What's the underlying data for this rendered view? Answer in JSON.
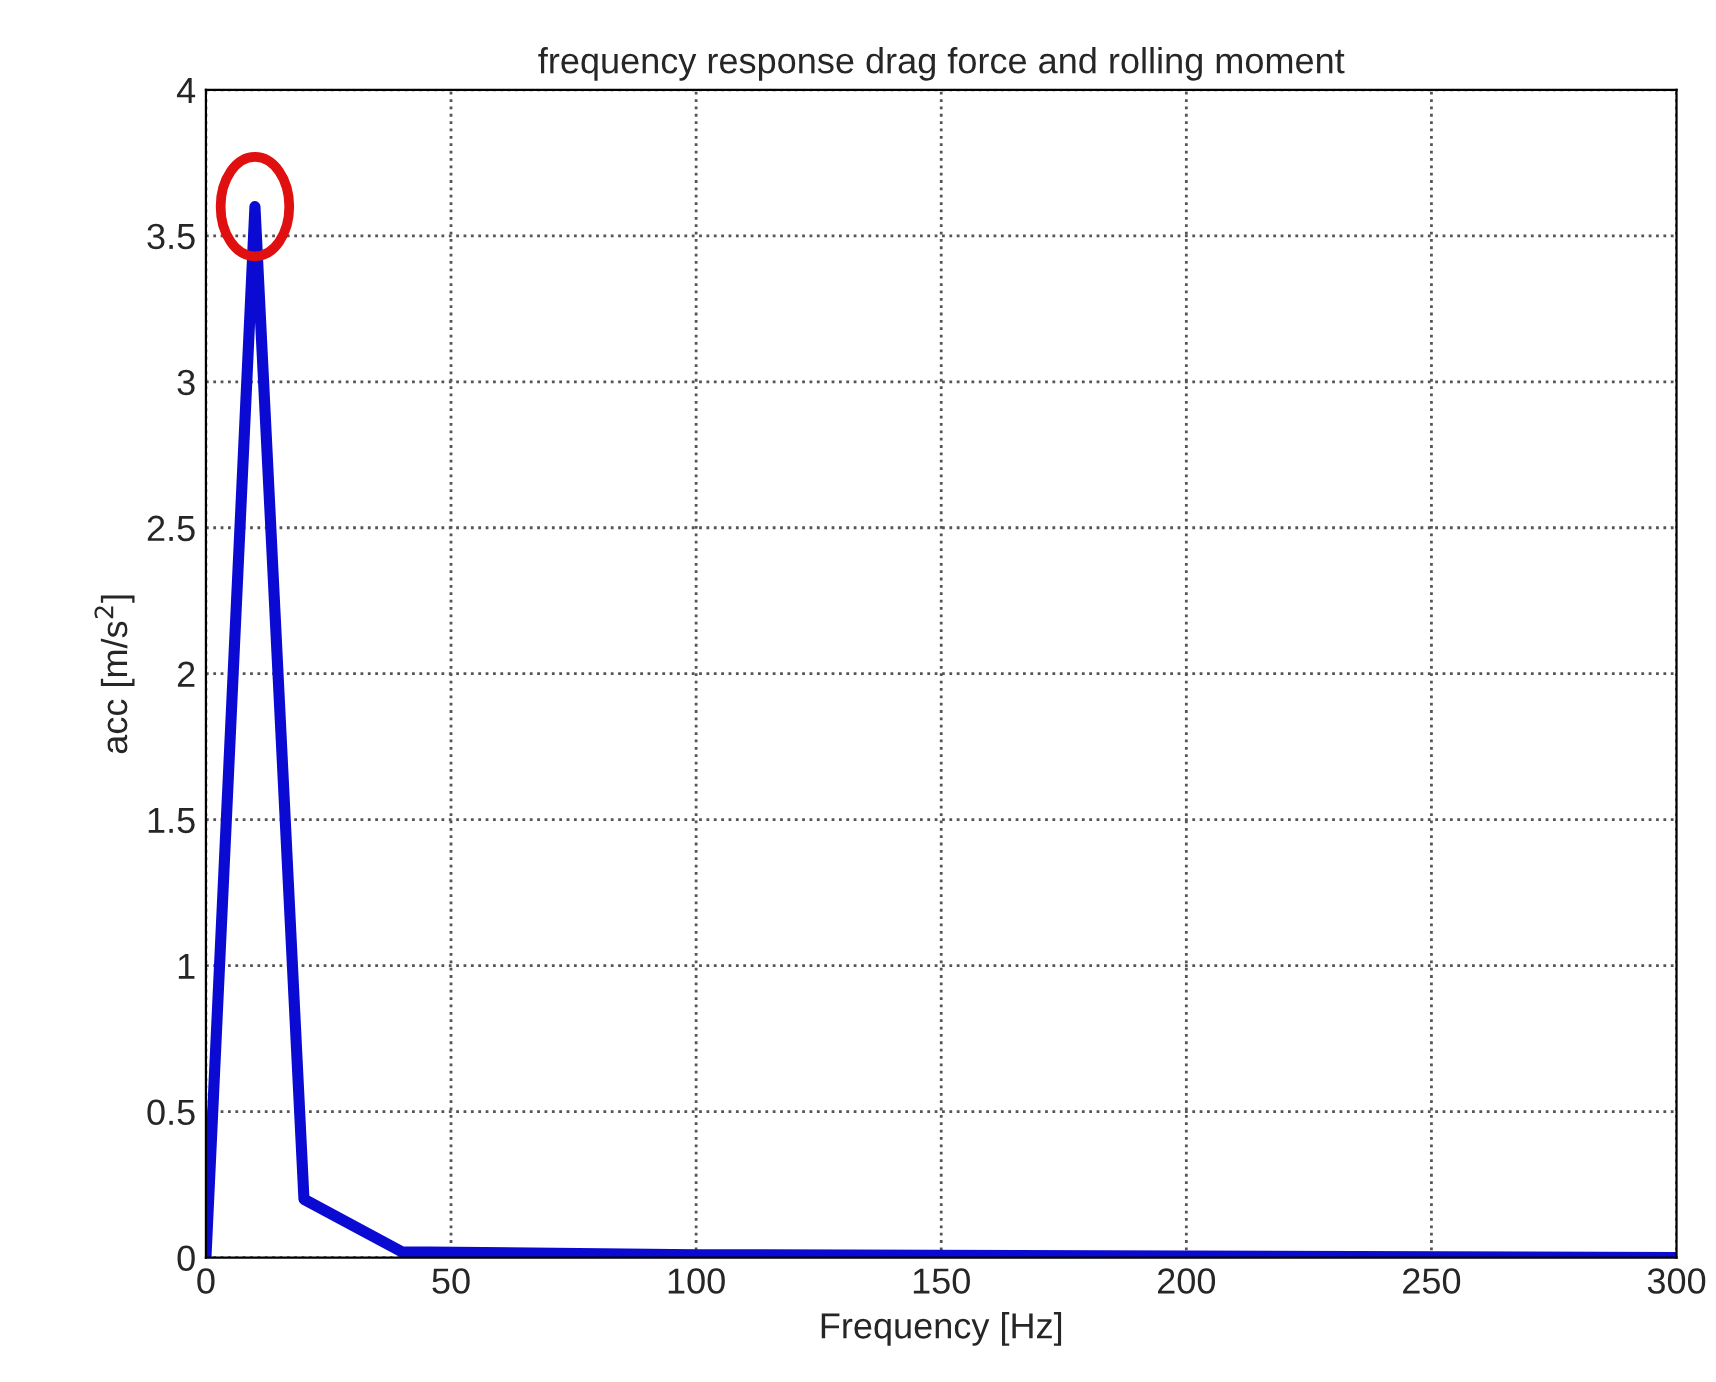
{
  "chart_data": {
    "type": "line",
    "title": "frequency response drag force and rolling moment",
    "xlabel": "Frequency [Hz]",
    "ylabel": "acc [m/s$^{2}$]",
    "x": [
      0,
      10,
      20,
      40,
      100,
      300
    ],
    "series": [
      {
        "color": "#0a0ad2",
        "values": [
          0,
          3.6,
          0.2,
          0.02,
          0.01,
          0
        ]
      }
    ],
    "xlim": [
      0,
      300
    ],
    "xticks": [
      0,
      50,
      100,
      150,
      200,
      250,
      300
    ],
    "ylim": [
      0,
      4
    ],
    "yticks": [
      0,
      0.5,
      1,
      1.5,
      2,
      2.5,
      3,
      3.5,
      4
    ],
    "grid": true,
    "line_style": "solid",
    "marker": "none"
  }
}
